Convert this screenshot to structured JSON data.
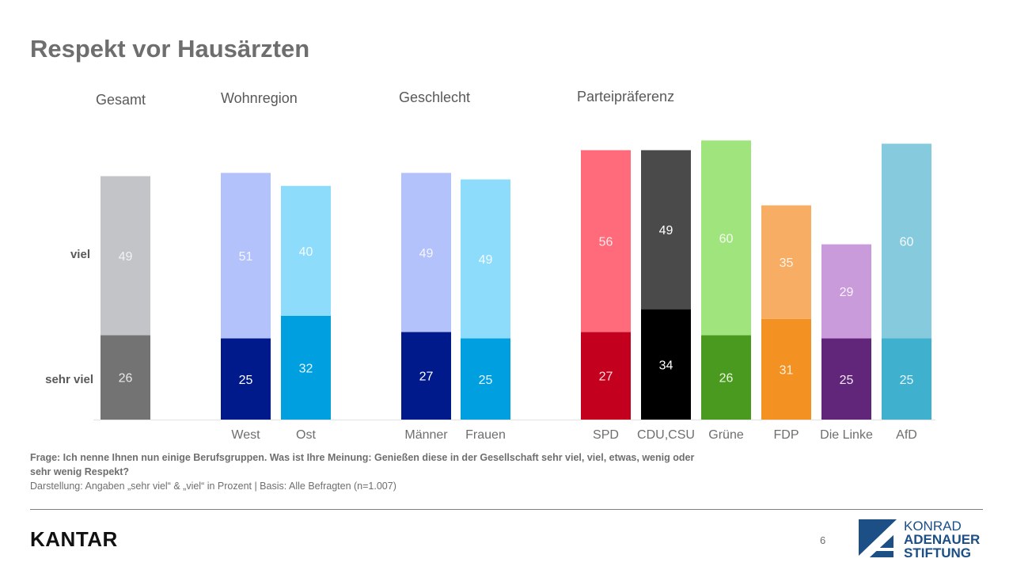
{
  "page": {
    "title": "Respekt vor Hausärzten",
    "page_number": "6"
  },
  "footnote": {
    "question": "Frage: Ich nenne Ihnen nun einige Berufsgruppen. Was ist Ihre Meinung: Genießen diese in der Gesellschaft sehr viel, viel, etwas, wenig oder sehr wenig Respekt?",
    "basis": "Darstellung: Angaben „sehr viel“ & „viel“ in Prozent | Basis: Alle Befragten (n=1.007)"
  },
  "logos": {
    "kantar": "KANTAR",
    "kas_line1": "KONRAD",
    "kas_line2": "ADENAUER",
    "kas_line3": "STIFTUNG"
  },
  "chart_data": {
    "type": "bar",
    "stacked": true,
    "title": "Respekt vor Hausärzten",
    "xlabel": "",
    "ylabel": "",
    "unit": "Prozent",
    "ylim": [
      0,
      90
    ],
    "grid": false,
    "row_labels": {
      "top": "viel",
      "bottom": "sehr viel"
    },
    "groups": [
      {
        "label": "Gesamt",
        "categories": [
          ""
        ]
      },
      {
        "label": "Wohnregion",
        "categories": [
          "West",
          "Ost"
        ]
      },
      {
        "label": "Geschlecht",
        "categories": [
          "Männer",
          "Frauen"
        ]
      },
      {
        "label": "Parteipräferenz",
        "categories": [
          "SPD",
          "CDU,CSU",
          "Grüne",
          "FDP",
          "Die Linke",
          "AfD"
        ]
      }
    ],
    "categories": [
      "Gesamt",
      "West",
      "Ost",
      "Männer",
      "Frauen",
      "SPD",
      "CDU,CSU",
      "Grüne",
      "FDP",
      "Die Linke",
      "AfD"
    ],
    "series": [
      {
        "name": "sehr viel",
        "values": [
          26,
          25,
          32,
          27,
          25,
          27,
          34,
          26,
          31,
          25,
          25
        ]
      },
      {
        "name": "viel",
        "values": [
          49,
          51,
          40,
          49,
          49,
          56,
          49,
          60,
          35,
          29,
          60
        ]
      }
    ],
    "colors": {
      "sehr viel": [
        "#737373",
        "#001a8c",
        "#00a0e0",
        "#001a8c",
        "#00a0e0",
        "#c3001d",
        "#000000",
        "#4a9a20",
        "#f39222",
        "#612679",
        "#3fb0ce"
      ],
      "viel": [
        "#c3c4c7",
        "#b3c2fa",
        "#8ddcfc",
        "#b3c2fa",
        "#8ddcfc",
        "#ff6b7a",
        "#4a4a4a",
        "#a0e47d",
        "#f7ad64",
        "#ca9bdb",
        "#86cadd"
      ]
    },
    "label_colors": {
      "sehr viel": [
        "#e8e8e8",
        "#ffffff",
        "#e8f7ff",
        "#ffffff",
        "#e8f7ff",
        "#ffe0e0",
        "#ffffff",
        "#eaf7e0",
        "#fff0dd",
        "#f3e6fa",
        "#e8f6fb"
      ],
      "viel": [
        "#f2f2f2",
        "#f4f6ff",
        "#f4fbff",
        "#f4f6ff",
        "#f4fbff",
        "#ffe8ea",
        "#ffffff",
        "#f6fdf0",
        "#fff4e8",
        "#faf2fd",
        "#f4fafc"
      ]
    }
  }
}
